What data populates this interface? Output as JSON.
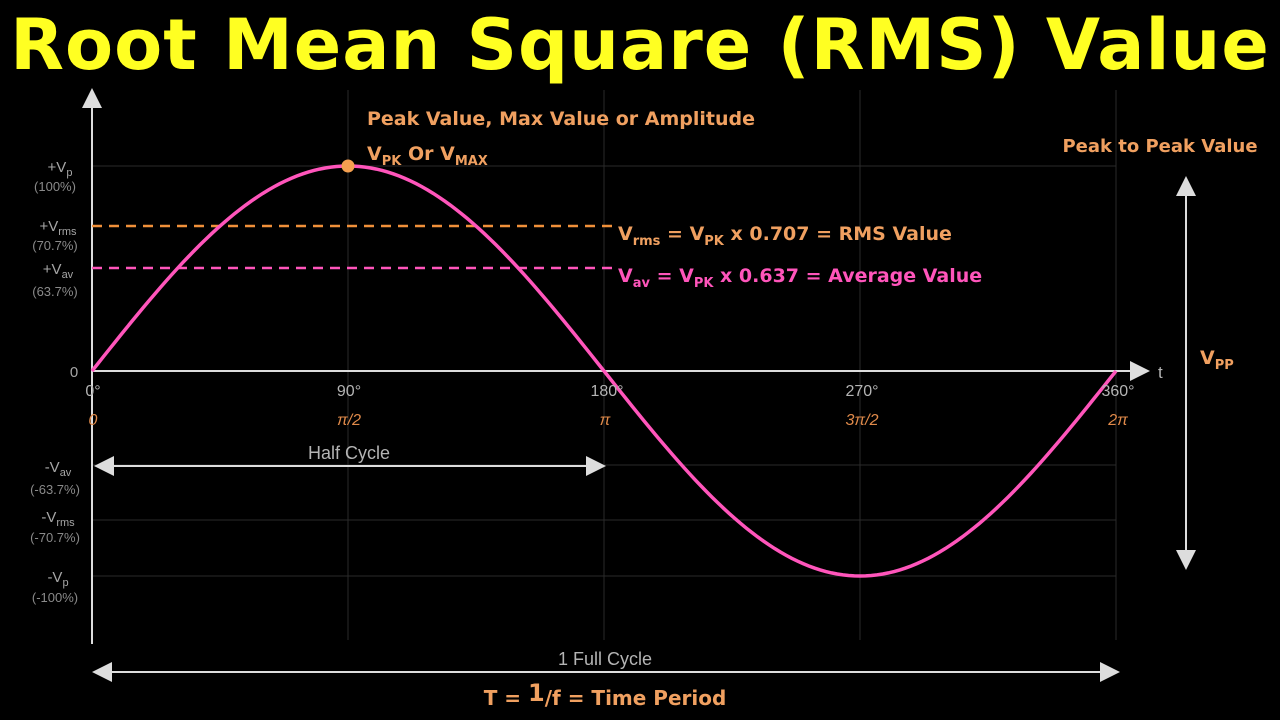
{
  "title": "Root Mean Square (RMS) Value",
  "colors": {
    "title": "#ffff22",
    "wave": "#ff55bb",
    "rms_line": "#f0903a",
    "av_line": "#ff55bb",
    "annotation_orange": "#f0a060",
    "axis": "#dddddd"
  },
  "y_labels": {
    "pos_vp": {
      "main": "+V",
      "sub": "p",
      "pct": "(100%)"
    },
    "pos_vrms": {
      "main": "+V",
      "sub": "rms",
      "pct": "(70.7%)"
    },
    "pos_vav": {
      "main": "+V",
      "sub": "av",
      "pct": "(63.7%)"
    },
    "zero": "0",
    "neg_vav": {
      "main": "-V",
      "sub": "av",
      "pct": "(-63.7%)"
    },
    "neg_vrms": {
      "main": "-V",
      "sub": "rms",
      "pct": "(-70.7%)"
    },
    "neg_vp": {
      "main": "-V",
      "sub": "p",
      "pct": "(-100%)"
    }
  },
  "x_labels": {
    "deg": [
      "0°",
      "90°",
      "180°",
      "270°",
      "360°"
    ],
    "rad": [
      "0",
      "π/2",
      "π",
      "3π/2",
      "2π"
    ],
    "axis_name": "t"
  },
  "annotations": {
    "peak_title": "Peak Value, Max Value or Amplitude",
    "peak_v1": "V",
    "peak_v1_sub": "PK",
    "peak_or": " Or ",
    "peak_v2": "V",
    "peak_v2_sub": "MAX",
    "rms_v": "V",
    "rms_sub": "rms",
    "rms_mid": " = V",
    "rms_pk_sub": "PK",
    "rms_tail": " x 0.707 = RMS Value",
    "av_v": "V",
    "av_sub": "av",
    "av_mid": " = V",
    "av_pk_sub": "PK",
    "av_tail": " x 0.637 = Average Value",
    "p2p_title": "Peak to Peak Value",
    "vpp_main": "V",
    "vpp_sub": "PP",
    "half_cycle": "Half Cycle",
    "full_cycle": "1 Full Cycle",
    "period_left": "T = ",
    "period_num": "1",
    "period_right": "/f = Time Period"
  },
  "chart_data": {
    "type": "line",
    "title": "Root Mean Square (RMS) Value",
    "x_unit": "degrees",
    "x": [
      0,
      90,
      180,
      270,
      360
    ],
    "series": [
      {
        "name": "",
        "function": "sin",
        "values": [
          0,
          100,
          0,
          -100,
          0
        ]
      }
    ],
    "reference_lines": [
      {
        "label": "Vrms",
        "value": 70.7
      },
      {
        "label": "Vav",
        "value": 63.7
      }
    ],
    "ylim": [
      -100,
      100
    ],
    "xlim": [
      0,
      360
    ]
  }
}
